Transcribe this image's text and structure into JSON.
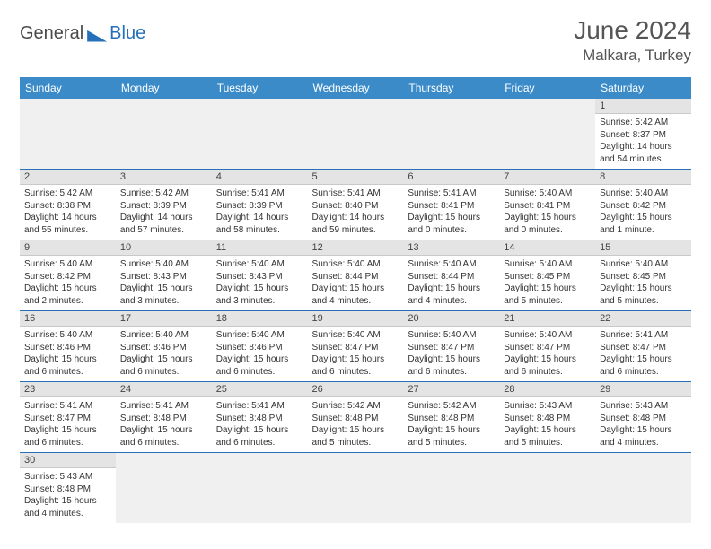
{
  "brand": {
    "general": "General",
    "blue": "Blue"
  },
  "title": "June 2024",
  "location": "Malkara, Turkey",
  "header_color": "#3b8bc9",
  "accent_color": "#2570b8",
  "alt_row_bg": "#e4e4e4",
  "day_headers": [
    "Sunday",
    "Monday",
    "Tuesday",
    "Wednesday",
    "Thursday",
    "Friday",
    "Saturday"
  ],
  "weeks": [
    [
      null,
      null,
      null,
      null,
      null,
      null,
      {
        "n": "1",
        "sr": "Sunrise: 5:42 AM",
        "ss": "Sunset: 8:37 PM",
        "dl": "Daylight: 14 hours and 54 minutes."
      }
    ],
    [
      {
        "n": "2",
        "sr": "Sunrise: 5:42 AM",
        "ss": "Sunset: 8:38 PM",
        "dl": "Daylight: 14 hours and 55 minutes."
      },
      {
        "n": "3",
        "sr": "Sunrise: 5:42 AM",
        "ss": "Sunset: 8:39 PM",
        "dl": "Daylight: 14 hours and 57 minutes."
      },
      {
        "n": "4",
        "sr": "Sunrise: 5:41 AM",
        "ss": "Sunset: 8:39 PM",
        "dl": "Daylight: 14 hours and 58 minutes."
      },
      {
        "n": "5",
        "sr": "Sunrise: 5:41 AM",
        "ss": "Sunset: 8:40 PM",
        "dl": "Daylight: 14 hours and 59 minutes."
      },
      {
        "n": "6",
        "sr": "Sunrise: 5:41 AM",
        "ss": "Sunset: 8:41 PM",
        "dl": "Daylight: 15 hours and 0 minutes."
      },
      {
        "n": "7",
        "sr": "Sunrise: 5:40 AM",
        "ss": "Sunset: 8:41 PM",
        "dl": "Daylight: 15 hours and 0 minutes."
      },
      {
        "n": "8",
        "sr": "Sunrise: 5:40 AM",
        "ss": "Sunset: 8:42 PM",
        "dl": "Daylight: 15 hours and 1 minute."
      }
    ],
    [
      {
        "n": "9",
        "sr": "Sunrise: 5:40 AM",
        "ss": "Sunset: 8:42 PM",
        "dl": "Daylight: 15 hours and 2 minutes."
      },
      {
        "n": "10",
        "sr": "Sunrise: 5:40 AM",
        "ss": "Sunset: 8:43 PM",
        "dl": "Daylight: 15 hours and 3 minutes."
      },
      {
        "n": "11",
        "sr": "Sunrise: 5:40 AM",
        "ss": "Sunset: 8:43 PM",
        "dl": "Daylight: 15 hours and 3 minutes."
      },
      {
        "n": "12",
        "sr": "Sunrise: 5:40 AM",
        "ss": "Sunset: 8:44 PM",
        "dl": "Daylight: 15 hours and 4 minutes."
      },
      {
        "n": "13",
        "sr": "Sunrise: 5:40 AM",
        "ss": "Sunset: 8:44 PM",
        "dl": "Daylight: 15 hours and 4 minutes."
      },
      {
        "n": "14",
        "sr": "Sunrise: 5:40 AM",
        "ss": "Sunset: 8:45 PM",
        "dl": "Daylight: 15 hours and 5 minutes."
      },
      {
        "n": "15",
        "sr": "Sunrise: 5:40 AM",
        "ss": "Sunset: 8:45 PM",
        "dl": "Daylight: 15 hours and 5 minutes."
      }
    ],
    [
      {
        "n": "16",
        "sr": "Sunrise: 5:40 AM",
        "ss": "Sunset: 8:46 PM",
        "dl": "Daylight: 15 hours and 6 minutes."
      },
      {
        "n": "17",
        "sr": "Sunrise: 5:40 AM",
        "ss": "Sunset: 8:46 PM",
        "dl": "Daylight: 15 hours and 6 minutes."
      },
      {
        "n": "18",
        "sr": "Sunrise: 5:40 AM",
        "ss": "Sunset: 8:46 PM",
        "dl": "Daylight: 15 hours and 6 minutes."
      },
      {
        "n": "19",
        "sr": "Sunrise: 5:40 AM",
        "ss": "Sunset: 8:47 PM",
        "dl": "Daylight: 15 hours and 6 minutes."
      },
      {
        "n": "20",
        "sr": "Sunrise: 5:40 AM",
        "ss": "Sunset: 8:47 PM",
        "dl": "Daylight: 15 hours and 6 minutes."
      },
      {
        "n": "21",
        "sr": "Sunrise: 5:40 AM",
        "ss": "Sunset: 8:47 PM",
        "dl": "Daylight: 15 hours and 6 minutes."
      },
      {
        "n": "22",
        "sr": "Sunrise: 5:41 AM",
        "ss": "Sunset: 8:47 PM",
        "dl": "Daylight: 15 hours and 6 minutes."
      }
    ],
    [
      {
        "n": "23",
        "sr": "Sunrise: 5:41 AM",
        "ss": "Sunset: 8:47 PM",
        "dl": "Daylight: 15 hours and 6 minutes."
      },
      {
        "n": "24",
        "sr": "Sunrise: 5:41 AM",
        "ss": "Sunset: 8:48 PM",
        "dl": "Daylight: 15 hours and 6 minutes."
      },
      {
        "n": "25",
        "sr": "Sunrise: 5:41 AM",
        "ss": "Sunset: 8:48 PM",
        "dl": "Daylight: 15 hours and 6 minutes."
      },
      {
        "n": "26",
        "sr": "Sunrise: 5:42 AM",
        "ss": "Sunset: 8:48 PM",
        "dl": "Daylight: 15 hours and 5 minutes."
      },
      {
        "n": "27",
        "sr": "Sunrise: 5:42 AM",
        "ss": "Sunset: 8:48 PM",
        "dl": "Daylight: 15 hours and 5 minutes."
      },
      {
        "n": "28",
        "sr": "Sunrise: 5:43 AM",
        "ss": "Sunset: 8:48 PM",
        "dl": "Daylight: 15 hours and 5 minutes."
      },
      {
        "n": "29",
        "sr": "Sunrise: 5:43 AM",
        "ss": "Sunset: 8:48 PM",
        "dl": "Daylight: 15 hours and 4 minutes."
      }
    ],
    [
      {
        "n": "30",
        "sr": "Sunrise: 5:43 AM",
        "ss": "Sunset: 8:48 PM",
        "dl": "Daylight: 15 hours and 4 minutes."
      },
      null,
      null,
      null,
      null,
      null,
      null
    ]
  ]
}
